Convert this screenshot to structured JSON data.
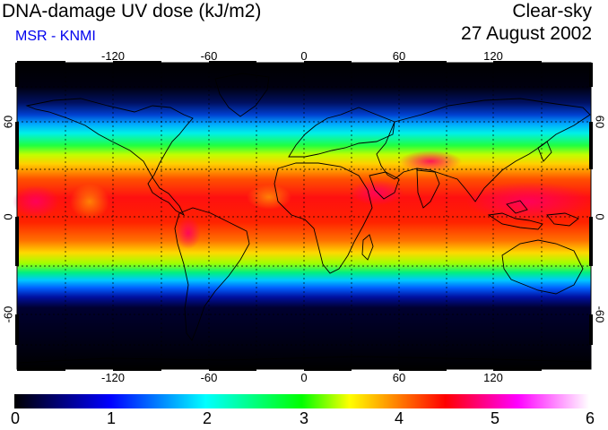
{
  "header": {
    "title": "DNA-damage UV dose (kJ/m2)",
    "subtitle": "MSR - KNMI",
    "subtitle_color": "#0000ee",
    "sky_condition": "Clear-sky",
    "date": "27 August 2002"
  },
  "map": {
    "projection": "equirectangular",
    "longitude_ticks": [
      "-120",
      "-60",
      "0",
      "60",
      "120"
    ],
    "latitude_ticks": [
      "60",
      "0",
      "-60"
    ],
    "right_latitude_ticks": [
      "60",
      "0",
      "-60"
    ],
    "gridlines": "dashed",
    "coastlines": true
  },
  "colorbar": {
    "labels": [
      "0",
      "1",
      "2",
      "3",
      "4",
      "5",
      "6"
    ],
    "colors": [
      "#000000",
      "#0000ff",
      "#00ffff",
      "#00ff00",
      "#ffff00",
      "#ff0000",
      "#ff00ff",
      "#ffffff"
    ]
  }
}
